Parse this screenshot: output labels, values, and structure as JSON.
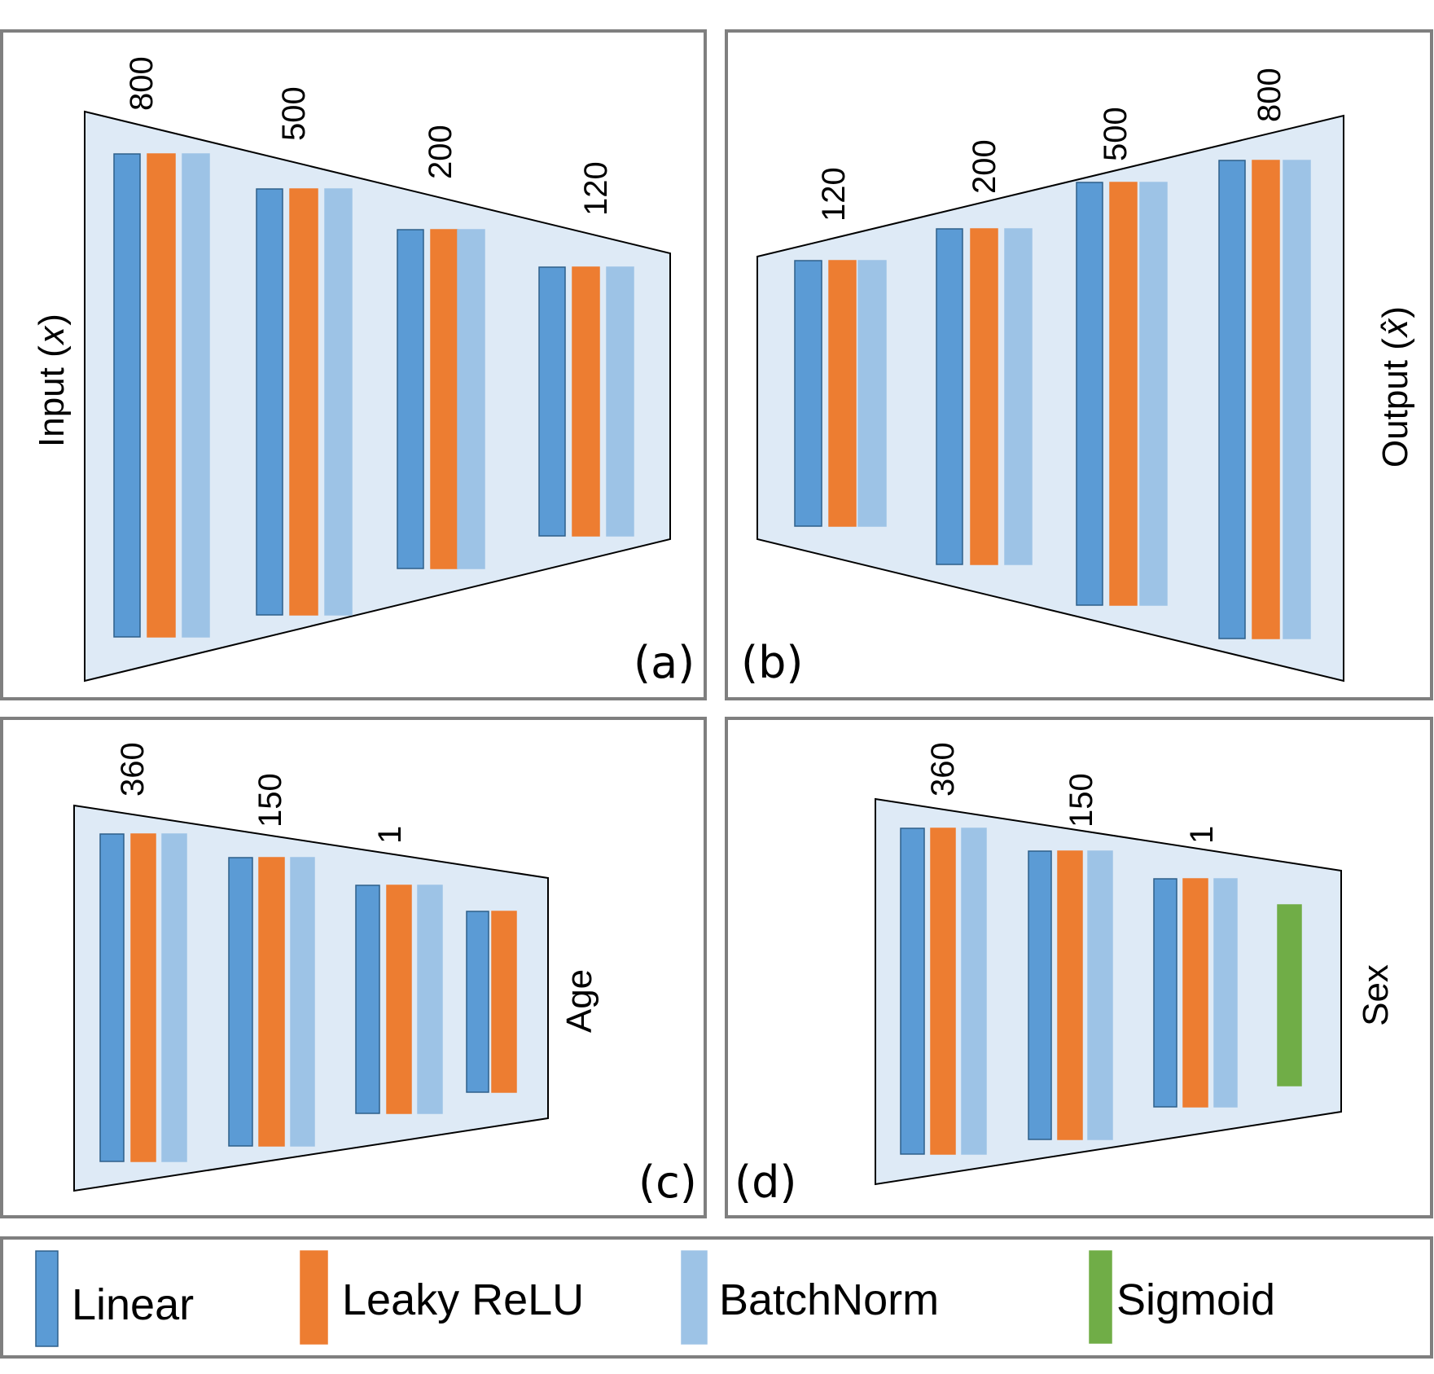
{
  "colors": {
    "linear": "#5b9bd5",
    "linear_stroke": "#2e5f8a",
    "leaky_relu": "#ed7d31",
    "batchnorm": "#9dc3e6",
    "sigmoid": "#70ad47",
    "trapezoid_fill": "#deeaf6",
    "frame": "#7f7f7f"
  },
  "panels": {
    "a": {
      "tag": "(a)",
      "side_label": "Input (𝑥)",
      "layers": [
        "800",
        "500",
        "200",
        "120"
      ]
    },
    "b": {
      "tag": "(b)",
      "side_label": "Output (𝑥̂)",
      "layers": [
        "120",
        "200",
        "500",
        "800"
      ]
    },
    "c": {
      "tag": "(c)",
      "side_label": "Age",
      "layers": [
        "360",
        "150",
        "1"
      ]
    },
    "d": {
      "tag": "(d)",
      "side_label": "Sex",
      "layers": [
        "360",
        "150",
        "1"
      ]
    }
  },
  "legend": {
    "items": [
      {
        "label": "Linear",
        "color_key": "linear"
      },
      {
        "label": "Leaky ReLU",
        "color_key": "leaky_relu"
      },
      {
        "label": "BatchNorm",
        "color_key": "batchnorm"
      },
      {
        "label": "Sigmoid",
        "color_key": "sigmoid"
      }
    ]
  }
}
